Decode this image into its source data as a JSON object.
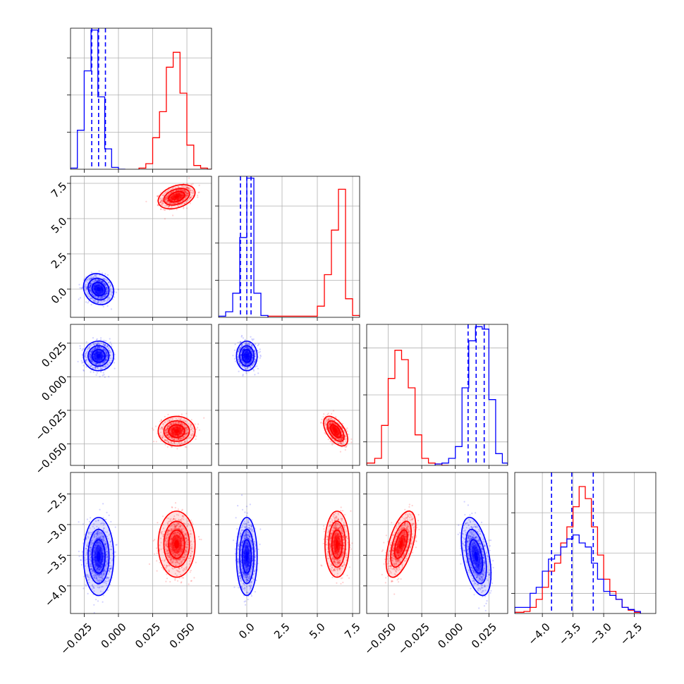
{
  "chart_data": {
    "type": "corner",
    "title": "",
    "n_params": 4,
    "series": [
      {
        "name": "",
        "color": "#0000ff"
      },
      {
        "name": "",
        "color": "#ff0000"
      }
    ],
    "params": [
      {
        "range": [
          -0.035,
          0.068
        ],
        "ticks": [
          -0.025,
          0.0,
          0.025,
          0.05
        ],
        "tick_labels": [
          "−0.025",
          "0.000",
          "0.025",
          "0.050"
        ]
      },
      {
        "range": [
          -2.0,
          8.0
        ],
        "ticks": [
          0.0,
          2.5,
          5.0,
          7.5
        ],
        "tick_labels": [
          "0.0",
          "2.5",
          "5.0",
          "7.5"
        ]
      },
      {
        "range": [
          -0.066,
          0.039
        ],
        "ticks": [
          -0.05,
          -0.025,
          0.0,
          0.025
        ],
        "tick_labels": [
          "−0.050",
          "−0.025",
          "0.000",
          "0.025"
        ]
      },
      {
        "range": [
          -4.45,
          -2.15
        ],
        "ticks": [
          -4.0,
          -3.5,
          -3.0,
          -2.5
        ],
        "tick_labels": [
          "−4.0",
          "−3.5",
          "−3.0",
          "−2.5"
        ]
      }
    ],
    "quantiles_blue": [
      [
        -0.0195,
        -0.0145,
        -0.0095
      ],
      [
        -0.45,
        0.0,
        0.3
      ],
      [
        0.0095,
        0.0155,
        0.0215
      ],
      [
        -3.85,
        -3.52,
        -3.17
      ]
    ],
    "hist_axis_max": [
      38,
      38,
      30,
      35
    ],
    "hist_yticks": [
      [
        10,
        20,
        30
      ],
      [
        10,
        20,
        30
      ],
      [
        5,
        15,
        25
      ],
      [
        5,
        15,
        25
      ]
    ],
    "hist1d": [
      {
        "blue": {
          "edges": [
            -0.035,
            -0.03,
            -0.025,
            -0.02,
            -0.015,
            -0.01,
            -0.005,
            0.0,
            0.005
          ],
          "counts": [
            0.3,
            10.5,
            26.5,
            37.5,
            19.5,
            5.5,
            0.5,
            0
          ]
        },
        "red": {
          "edges": [
            0.015,
            0.02,
            0.025,
            0.03,
            0.035,
            0.04,
            0.045,
            0.05,
            0.055,
            0.06,
            0.065,
            0.07
          ],
          "counts": [
            0.3,
            1.5,
            8.5,
            15.5,
            27.5,
            31.5,
            20.5,
            6.5,
            1.0,
            0.3,
            0
          ]
        }
      },
      {
        "blue": {
          "edges": [
            -2.0,
            -1.5,
            -1.0,
            -0.5,
            0.0,
            0.5,
            1.0,
            1.5
          ],
          "counts": [
            0.3,
            1.5,
            6.5,
            21.5,
            37.5,
            6.5,
            0.5
          ]
        },
        "red": {
          "edges": [
            1.5,
            5.0,
            5.5,
            6.0,
            6.5,
            7.0,
            7.5,
            8.0
          ],
          "counts": [
            0.3,
            3.0,
            11.5,
            23.5,
            34.5,
            5.0,
            0.5
          ]
        }
      },
      {
        "red": {
          "edges": [
            -0.066,
            -0.06,
            -0.055,
            -0.05,
            -0.045,
            -0.04,
            -0.035,
            -0.03,
            -0.025,
            -0.02,
            -0.015,
            -0.01,
            -0.005
          ],
          "counts": [
            0.5,
            1.5,
            8.5,
            18.5,
            24.5,
            22.5,
            16.5,
            6.5,
            1.5,
            0.5,
            0.3,
            0
          ]
        },
        "blue": {
          "edges": [
            -0.015,
            -0.01,
            -0.005,
            0.0,
            0.005,
            0.01,
            0.015,
            0.02,
            0.025,
            0.03,
            0.035,
            0.039
          ],
          "counts": [
            0.3,
            0.5,
            1.5,
            4.0,
            16.5,
            26.5,
            29.5,
            29.0,
            14.0,
            2.5,
            0.5
          ]
        }
      },
      {
        "blue": {
          "edges": [
            -4.45,
            -4.3,
            -4.2,
            -4.1,
            -4.0,
            -3.9,
            -3.8,
            -3.7,
            -3.6,
            -3.5,
            -3.4,
            -3.3,
            -3.2,
            -3.1,
            -3.0,
            -2.9,
            -2.8,
            -2.7,
            -2.6,
            -2.5,
            -2.4
          ],
          "counts": [
            1.5,
            1.5,
            5.0,
            6.5,
            10.5,
            13.5,
            14.5,
            16.5,
            18.5,
            19.5,
            17.5,
            16.5,
            12.5,
            8.5,
            5.5,
            4.5,
            3.5,
            1.5,
            1.0,
            0.5
          ]
        },
        "red": {
          "edges": [
            -4.45,
            -4.3,
            -4.2,
            -4.1,
            -4.0,
            -3.9,
            -3.8,
            -3.7,
            -3.6,
            -3.5,
            -3.4,
            -3.3,
            -3.2,
            -3.1,
            -3.0,
            -2.9,
            -2.8,
            -2.7,
            -2.6,
            -2.5,
            -2.4
          ],
          "counts": [
            0.3,
            0.5,
            1.5,
            3.5,
            6.5,
            10.5,
            12.5,
            17.5,
            21.5,
            26.5,
            31.5,
            28.5,
            21.5,
            14.5,
            8.5,
            5.5,
            3.5,
            1.5,
            0.8,
            0.3
          ]
        }
      }
    ],
    "blobs_2d": [
      {
        "x": 0,
        "y": 1,
        "blue": {
          "mx": -0.0145,
          "my": 0.0,
          "sx": 0.0045,
          "sy": 0.45,
          "rho": -0.15
        },
        "red": {
          "mx": 0.0425,
          "my": 6.55,
          "sx": 0.0055,
          "sy": 0.35,
          "rho": 0.35
        }
      },
      {
        "x": 0,
        "y": 2,
        "blue": {
          "mx": -0.0145,
          "my": 0.0155,
          "sx": 0.0045,
          "sy": 0.0045,
          "rho": 0.0
        },
        "red": {
          "mx": 0.0425,
          "my": -0.0405,
          "sx": 0.0055,
          "sy": 0.0045,
          "rho": 0.0
        }
      },
      {
        "x": 0,
        "y": 3,
        "blue": {
          "mx": -0.0145,
          "my": -3.52,
          "sx": 0.0045,
          "sy": 0.26,
          "rho": 0.0
        },
        "red": {
          "mx": 0.0425,
          "my": -3.32,
          "sx": 0.0055,
          "sy": 0.22,
          "rho": 0.0
        }
      },
      {
        "x": 1,
        "y": 2,
        "blue": {
          "mx": 0.0,
          "my": 0.0155,
          "sx": 0.3,
          "sy": 0.0045,
          "rho": 0.0
        },
        "red": {
          "mx": 6.3,
          "my": -0.0405,
          "sx": 0.35,
          "sy": 0.0045,
          "rho": -0.55
        }
      },
      {
        "x": 1,
        "y": 3,
        "blue": {
          "mx": 0.0,
          "my": -3.52,
          "sx": 0.3,
          "sy": 0.26,
          "rho": 0.0
        },
        "red": {
          "mx": 6.4,
          "my": -3.32,
          "sx": 0.35,
          "sy": 0.22,
          "rho": 0.0
        }
      },
      {
        "x": 2,
        "y": 3,
        "blue": {
          "mx": 0.0155,
          "my": -3.52,
          "sx": 0.0045,
          "sy": 0.26,
          "rho": -0.45
        },
        "red": {
          "mx": -0.0405,
          "my": -3.32,
          "sx": 0.0045,
          "sy": 0.22,
          "rho": 0.55
        }
      }
    ],
    "grid": true
  }
}
